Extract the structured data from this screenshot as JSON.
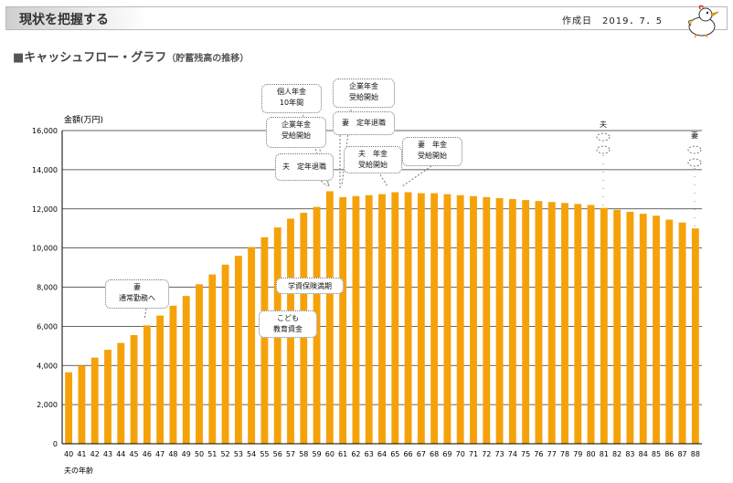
{
  "header": {
    "title": "現状を把握する",
    "date": "作成日　2019．7．5"
  },
  "section": {
    "square": "■",
    "title": "キャッシュフロー・グラフ",
    "subtitle": "（貯蓄残高の推移）"
  },
  "colors": {
    "bar": "#f5a20a",
    "grid": "#333333"
  },
  "chart_data": {
    "type": "bar",
    "title": "キャッシュフロー・グラフ（貯蓄残高の推移）",
    "ylabel": "金額(万円)",
    "xlabel": "夫の年齢",
    "ylim": [
      0,
      16000
    ],
    "yticks": [
      0,
      2000,
      4000,
      6000,
      8000,
      10000,
      12000,
      14000,
      16000
    ],
    "ytick_labels": [
      "0",
      "2,000",
      "4,000",
      "6,000",
      "8,000",
      "10,000",
      "12,000",
      "14,000",
      "16,000"
    ],
    "categories": [
      "40",
      "41",
      "42",
      "43",
      "44",
      "45",
      "46",
      "47",
      "48",
      "49",
      "50",
      "51",
      "52",
      "53",
      "54",
      "55",
      "56",
      "57",
      "58",
      "59",
      "60",
      "61",
      "62",
      "63",
      "64",
      "65",
      "66",
      "67",
      "68",
      "69",
      "70",
      "71",
      "72",
      "73",
      "74",
      "75",
      "76",
      "77",
      "78",
      "79",
      "80",
      "81",
      "82",
      "83",
      "84",
      "85",
      "86",
      "87",
      "88"
    ],
    "values": [
      3650,
      4000,
      4400,
      4800,
      5150,
      5550,
      6050,
      6550,
      7050,
      7550,
      8150,
      8650,
      9150,
      9600,
      10050,
      10550,
      11050,
      11500,
      11800,
      12100,
      12900,
      12600,
      12650,
      12700,
      12750,
      12850,
      12850,
      12800,
      12800,
      12750,
      12700,
      12650,
      12600,
      12550,
      12500,
      12450,
      12400,
      12350,
      12300,
      12250,
      12200,
      12050,
      11950,
      11850,
      11750,
      11650,
      11450,
      11300,
      11000
    ],
    "annotations": [
      {
        "id": "wife-fulltime",
        "text": "妻\n通常勤務へ"
      },
      {
        "id": "child-edu",
        "text": "こども\n教育資金"
      },
      {
        "id": "insurance",
        "text": "学資保険満期"
      },
      {
        "id": "husband-retire",
        "text": "夫　定年退職"
      },
      {
        "id": "corp-pension-1",
        "text": "企業年金\n受給開始"
      },
      {
        "id": "personal-pension",
        "text": "個人年金\n10年間"
      },
      {
        "id": "corp-pension-2",
        "text": "企業年金\n受給開始"
      },
      {
        "id": "wife-retire",
        "text": "妻　定年退職"
      },
      {
        "id": "husband-pension",
        "text": "夫　年金\n受給開始"
      },
      {
        "id": "wife-pension",
        "text": "妻　年金\n受給開始"
      }
    ],
    "markers": [
      {
        "id": "husband-end",
        "text": "夫"
      },
      {
        "id": "wife-end",
        "text": "妻"
      }
    ]
  }
}
